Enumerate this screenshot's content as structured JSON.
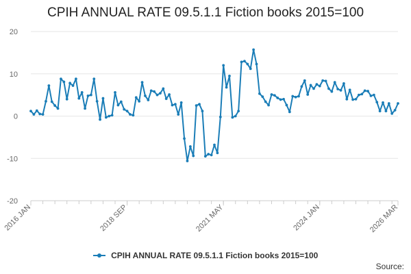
{
  "chart_data": {
    "type": "line",
    "title": "CPIH ANNUAL RATE 09.5.1.1 Fiction books 2015=100",
    "xlabel": "",
    "ylabel": "",
    "ylim": [
      -20,
      20
    ],
    "yticks": [
      20,
      10,
      0,
      -10,
      -20
    ],
    "xticks": [
      "2016 JAN",
      "2018 SEP",
      "2021 MAY",
      "2024 JAN",
      "2026 MAR"
    ],
    "xtick_index": [
      0,
      32,
      64,
      96,
      122
    ],
    "legend_position": "bottom",
    "grid": true,
    "series": [
      {
        "name": "CPIH ANNUAL RATE 09.5.1.1 Fiction books 2015=100",
        "color": "#1a7db7",
        "start": "2016 JAN",
        "frequency": "monthly",
        "values": [
          1.2,
          0.4,
          1.3,
          0.5,
          0.4,
          3.5,
          7.2,
          3.4,
          2.5,
          1.8,
          8.8,
          8.1,
          4.0,
          7.8,
          7.2,
          8.8,
          4.2,
          5.6,
          1.8,
          4.8,
          5.0,
          8.8,
          3.5,
          -0.8,
          4.2,
          -0.3,
          0.0,
          0.2,
          5.6,
          2.6,
          3.4,
          1.6,
          1.2,
          0.4,
          0.2,
          4.4,
          3.5,
          8.0,
          4.8,
          3.8,
          6.0,
          5.8,
          5.0,
          5.4,
          6.5,
          4.1,
          5.1,
          2.6,
          2.8,
          0.4,
          3.2,
          -5.3,
          -10.6,
          -7.2,
          -9.4,
          2.5,
          2.8,
          1.2,
          -9.5,
          -9.0,
          -9.2,
          -6.8,
          -8.7,
          -0.2,
          12.0,
          6.8,
          9.5,
          -0.3,
          0.0,
          1.2,
          12.8,
          13.0,
          12.3,
          11.2,
          15.7,
          12.3,
          5.3,
          4.6,
          3.4,
          2.6,
          5.1,
          4.9,
          4.3,
          3.9,
          4.0,
          2.6,
          1.0,
          4.7,
          4.5,
          4.7,
          7.0,
          8.4,
          5.1,
          7.3,
          6.5,
          7.5,
          7.1,
          8.4,
          8.3,
          6.5,
          5.8,
          8.0,
          6.4,
          6.1,
          7.7,
          4.0,
          6.2,
          3.9,
          4.0,
          5.0,
          5.2,
          6.0,
          5.9,
          4.8,
          5.0,
          3.3,
          1.2,
          3.2,
          1.2,
          3.0,
          0.6,
          1.4,
          3.0
        ]
      }
    ]
  },
  "source_label": "Source:"
}
